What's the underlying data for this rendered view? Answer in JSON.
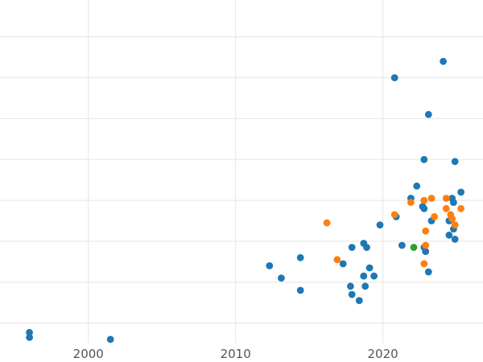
{
  "chart_data": {
    "type": "scatter",
    "title": "",
    "xlabel": "",
    "ylabel": "",
    "xlim": [
      1994.0,
      2026.8
    ],
    "ylim": [
      0,
      8.4
    ],
    "grid": true,
    "x_ticks": [
      2000,
      2010,
      2020
    ],
    "x_tick_labels": [
      "2000",
      "2010",
      "2020"
    ],
    "y_gridlines": [
      0.5,
      1.5,
      2.5,
      3.5,
      4.5,
      5.5,
      6.5,
      7.5,
      8.5
    ],
    "series": [
      {
        "color": "#1f77b4",
        "points": [
          [
            1996.0,
            0.15
          ],
          [
            1996.0,
            0.27
          ],
          [
            2001.5,
            0.1
          ],
          [
            2012.3,
            1.9
          ],
          [
            2013.1,
            1.6
          ],
          [
            2014.4,
            1.3
          ],
          [
            2014.4,
            2.1
          ],
          [
            2017.3,
            1.95
          ],
          [
            2017.8,
            1.4
          ],
          [
            2017.9,
            2.35
          ],
          [
            2017.9,
            1.2
          ],
          [
            2018.4,
            1.05
          ],
          [
            2018.7,
            1.65
          ],
          [
            2018.7,
            2.45
          ],
          [
            2018.8,
            1.4
          ],
          [
            2018.9,
            2.35
          ],
          [
            2019.1,
            1.85
          ],
          [
            2019.4,
            1.65
          ],
          [
            2019.8,
            2.9
          ],
          [
            2020.9,
            3.1
          ],
          [
            2021.3,
            2.4
          ],
          [
            2021.9,
            3.55
          ],
          [
            2022.3,
            3.85
          ],
          [
            2022.7,
            3.35
          ],
          [
            2022.8,
            3.3
          ],
          [
            2022.8,
            2.35
          ],
          [
            2022.9,
            2.25
          ],
          [
            2023.1,
            1.75
          ],
          [
            2023.3,
            3.0
          ],
          [
            2022.8,
            4.5
          ],
          [
            2023.1,
            5.6
          ],
          [
            2020.8,
            6.5
          ],
          [
            2024.1,
            6.9
          ],
          [
            2024.9,
            4.45
          ],
          [
            2025.3,
            3.7
          ],
          [
            2024.7,
            3.55
          ],
          [
            2024.8,
            3.45
          ],
          [
            2024.5,
            3.0
          ],
          [
            2024.5,
            2.65
          ],
          [
            2024.8,
            2.8
          ],
          [
            2024.9,
            2.55
          ]
        ]
      },
      {
        "color": "#ff7f0e",
        "points": [
          [
            2016.2,
            2.95
          ],
          [
            2016.9,
            2.05
          ],
          [
            2020.8,
            3.15
          ],
          [
            2021.9,
            3.45
          ],
          [
            2022.8,
            3.5
          ],
          [
            2023.3,
            3.55
          ],
          [
            2022.9,
            2.75
          ],
          [
            2023.5,
            3.1
          ],
          [
            2024.3,
            3.55
          ],
          [
            2024.3,
            3.3
          ],
          [
            2024.6,
            3.15
          ],
          [
            2024.7,
            3.05
          ],
          [
            2024.9,
            2.9
          ],
          [
            2025.3,
            3.3
          ],
          [
            2022.9,
            2.4
          ],
          [
            2022.8,
            1.95
          ]
        ]
      },
      {
        "color": "#2ca02c",
        "points": [
          [
            2022.1,
            2.35
          ]
        ]
      }
    ]
  }
}
